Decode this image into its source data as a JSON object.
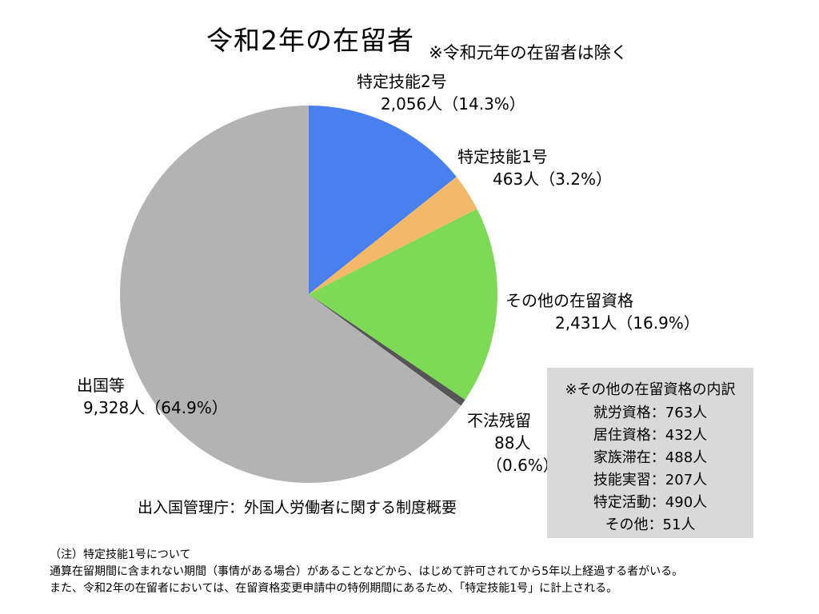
{
  "chart_data": {
    "type": "pie",
    "title": "令和2年の在留者",
    "subtitle": "※令和元年の在留者は除く",
    "unit": "人",
    "slices": [
      {
        "label": "特定技能2号",
        "value": 2056,
        "value_text": "2,056",
        "percent": 14.3,
        "percent_text": "（14.3%）",
        "color": "#4a7ff0"
      },
      {
        "label": "特定技能1号",
        "value": 463,
        "value_text": "463",
        "percent": 3.2,
        "percent_text": "（3.2%）",
        "color": "#f2b96a"
      },
      {
        "label": "その他の在留資格",
        "value": 2431,
        "value_text": "2,431",
        "percent": 16.9,
        "percent_text": "（16.9%）",
        "color": "#7ed957"
      },
      {
        "label": "不法残留",
        "value": 88,
        "value_text": "88",
        "percent": 0.6,
        "percent_text": "（0.6%）",
        "color": "#555555"
      },
      {
        "label": "出国等",
        "value": 9328,
        "value_text": "9,328",
        "percent": 64.9,
        "percent_text": "（64.9%）",
        "color": "#b3b3b3"
      }
    ],
    "start_angle_deg": 0,
    "direction": "clockwise"
  },
  "source": "出入国管理庁：外国人労働者に関する制度概要",
  "breakdown": {
    "title": "※その他の在留資格の内訳",
    "rows": [
      "就労資格：763人",
      "居住資格：432人",
      "家族滞在：488人",
      "技能実習：207人",
      "特定活動：490人",
      "その他：51人"
    ]
  },
  "notes": [
    "（注）特定技能1号について",
    "通算在留期間に含まれない期間（事情がある場合）があることなどから、はじめて許可されてから5年以上経過する者がいる。",
    "また、令和2年の在留者においては、在留資格変更申請中の特例期間にあるため、「特定技能1号」に計上される。"
  ]
}
